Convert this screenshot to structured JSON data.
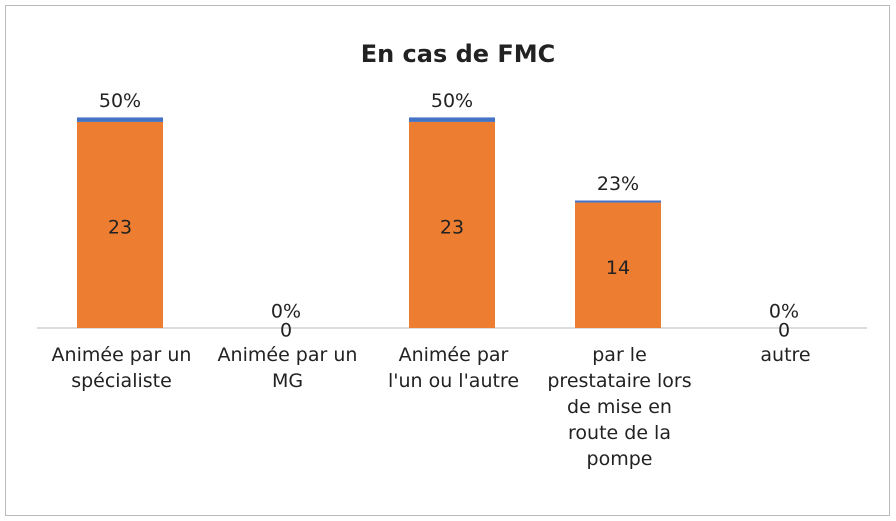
{
  "chart_data": {
    "type": "stacked_bar",
    "title": "En cas de FMC",
    "categories": [
      "Animée par un\nspécialiste",
      "Animée par un\nMG",
      "Animée par\nl'un ou l'autre",
      "par le\nprestataire lors\nde mise en\nroute de la\npompe",
      "autre"
    ],
    "series": [
      {
        "color": "#ed7d31",
        "values": [
          23,
          0,
          23,
          14,
          0
        ]
      },
      {
        "color": "#4472c4",
        "values": [
          0.5,
          0,
          0.5,
          0.23,
          0
        ],
        "value_labels": [
          "50%",
          "0%",
          "50%",
          "23%",
          "0%"
        ]
      }
    ],
    "ylim": [
      0,
      25
    ]
  }
}
